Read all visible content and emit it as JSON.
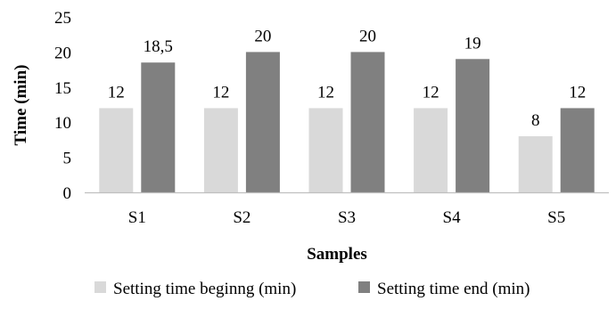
{
  "chart_data": {
    "type": "bar",
    "title": "",
    "xlabel": "Samples",
    "ylabel": "Time (min)",
    "ylim": [
      0,
      25
    ],
    "yticks": [
      0,
      5,
      10,
      15,
      20,
      25
    ],
    "grid": false,
    "legend_position": "bottom",
    "categories": [
      "S1",
      "S2",
      "S3",
      "S4",
      "S5"
    ],
    "series": [
      {
        "name": "Setting time beginng (min)",
        "color": "#d9d9d9",
        "values": [
          12,
          12,
          12,
          12,
          8
        ],
        "labels": [
          "12",
          "12",
          "12",
          "12",
          "8"
        ]
      },
      {
        "name": "Setting time end (min)",
        "color": "#808080",
        "values": [
          18.5,
          20,
          20,
          19,
          12
        ],
        "labels": [
          "18,5",
          "20",
          "20",
          "19",
          "12"
        ]
      }
    ]
  }
}
